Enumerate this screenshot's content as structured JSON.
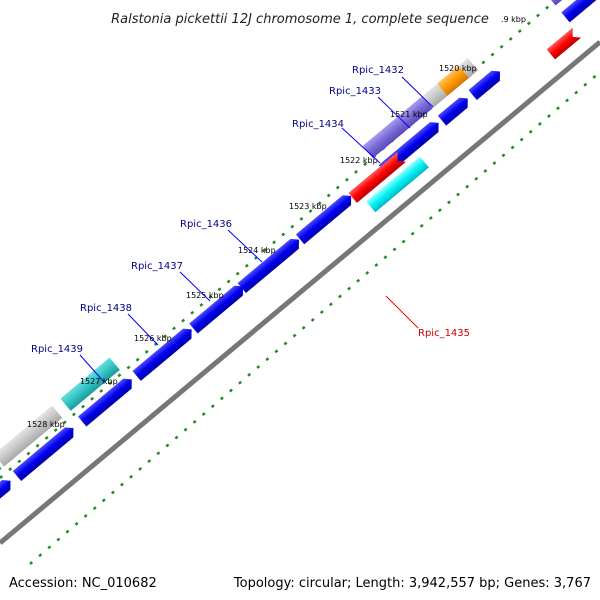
{
  "title": "Ralstonia pickettii 12J chromosome 1, complete sequence",
  "footer": {
    "accession": "Accession: NC_010682",
    "stats": "Topology: circular; Length: 3,942,557 bp; Genes: 3,767"
  },
  "colors": {
    "cds": "#0000ee",
    "cds_reverse": "#ff0000",
    "highlight_purple": "#7a6ad6",
    "highlight_teal": "#33cccc",
    "highlight_cyan": "#00ffff",
    "highlight_green": "#33e08a",
    "highlight_orange": "#ff9a00",
    "gray_feature": "#c8c8c8",
    "backbone": "#777777",
    "ticks": "#228b22",
    "label_forward": "#00008b",
    "label_reverse": "#cc0000"
  },
  "kbp_marks": [
    {
      "label": ".9 kbp"
    },
    {
      "label": "1520 kbp"
    },
    {
      "label": "1521 kbp"
    },
    {
      "label": "1522 kbp"
    },
    {
      "label": "1523 kbp"
    },
    {
      "label": "1524 kbp"
    },
    {
      "label": "1525 kbp"
    },
    {
      "label": "1526 kbp"
    },
    {
      "label": "1527 kbp"
    },
    {
      "label": "1528 kbp"
    }
  ],
  "gene_labels": [
    {
      "name": "Rpic_1432",
      "strand": "forward"
    },
    {
      "name": "Rpic_1433",
      "strand": "forward"
    },
    {
      "name": "Rpic_1434",
      "strand": "forward"
    },
    {
      "name": "Rpic_1436",
      "strand": "forward"
    },
    {
      "name": "Rpic_1437",
      "strand": "forward"
    },
    {
      "name": "Rpic_1438",
      "strand": "forward"
    },
    {
      "name": "Rpic_1439",
      "strand": "forward"
    },
    {
      "name": "Rpic_1435",
      "strand": "reverse"
    }
  ]
}
